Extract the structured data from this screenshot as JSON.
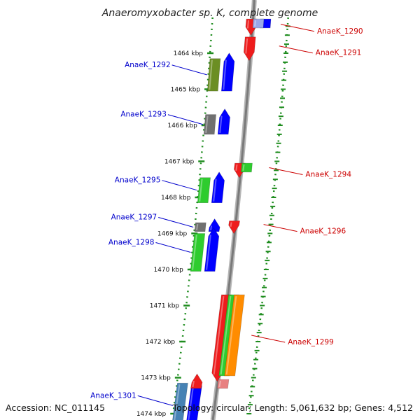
{
  "map": {
    "title": "Anaeromyxobacter sp. K, complete genome",
    "accession": "Accession: NC_011145",
    "summary": "Topology: circular; Length: 5,061,632 bp; Genes: 4,512",
    "axis_unit": "kbp"
  },
  "ticks": [
    {
      "kbp": 1464,
      "label": "1464 kbp"
    },
    {
      "kbp": 1465,
      "label": "1465 kbp"
    },
    {
      "kbp": 1466,
      "label": "1466 kbp"
    },
    {
      "kbp": 1467,
      "label": "1467 kbp"
    },
    {
      "kbp": 1468,
      "label": "1468 kbp"
    },
    {
      "kbp": 1469,
      "label": "1469 kbp"
    },
    {
      "kbp": 1470,
      "label": "1470 kbp"
    },
    {
      "kbp": 1471,
      "label": "1471 kbp"
    },
    {
      "kbp": 1472,
      "label": "1472 kbp"
    },
    {
      "kbp": 1473,
      "label": "1473 kbp"
    },
    {
      "kbp": 1474,
      "label": "1474 kbp"
    }
  ],
  "genes_left": [
    {
      "label": "AnaeK_1292",
      "start": 1464.15,
      "end": 1465.05,
      "color": "#6b8e23"
    },
    {
      "label": "AnaeK_1293",
      "start": 1465.7,
      "end": 1466.25,
      "color": "#707070"
    },
    {
      "label": "AnaeK_1295",
      "start": 1467.45,
      "end": 1468.15,
      "color": "#2ecc2e"
    },
    {
      "label": "AnaeK_1297",
      "start": 1468.7,
      "end": 1468.95,
      "color": "#707070"
    },
    {
      "label": "AnaeK_1298",
      "start": 1469.0,
      "end": 1470.05,
      "color": "#2ecc2e"
    },
    {
      "label": "AnaeK_1301",
      "start": 1473.15,
      "end": 1474.4,
      "color": "#4682b4"
    }
  ],
  "genes_right": [
    {
      "label": "AnaeK_1290",
      "start": 1463.05,
      "end": 1463.35,
      "color": "#ee1c1c"
    },
    {
      "label": "AnaeK_1291",
      "start": 1463.55,
      "end": 1464.05,
      "color": "#ee1c1c"
    },
    {
      "label": "AnaeK_1294",
      "start": 1467.05,
      "end": 1467.3,
      "color": "#ee1c1c"
    },
    {
      "label": "AnaeK_1296",
      "start": 1468.65,
      "end": 1468.85,
      "color": "#ee1c1c"
    },
    {
      "label": "AnaeK_1299",
      "start": 1470.7,
      "end": 1472.95,
      "color": "#ee1c1c"
    }
  ],
  "unlabeled": [
    {
      "track": "fwd-cds",
      "start": 1463.05,
      "end": 1463.3,
      "color": "#0000ff"
    },
    {
      "track": "fwd-gene",
      "start": 1463.05,
      "end": 1463.3,
      "color": "#9aa8e8"
    },
    {
      "track": "fwd-gene",
      "start": 1467.05,
      "end": 1467.3,
      "color": "#2ecc2e"
    },
    {
      "track": "rev-cds",
      "start": 1464.15,
      "end": 1465.05,
      "color": "#0000ff"
    },
    {
      "track": "rev-cds",
      "start": 1465.7,
      "end": 1466.25,
      "color": "#0000ff"
    },
    {
      "track": "rev-cds",
      "start": 1467.45,
      "end": 1468.15,
      "color": "#0000ff"
    },
    {
      "track": "rev-cds",
      "start": 1468.75,
      "end": 1468.95,
      "color": "#0000ff"
    },
    {
      "track": "rev-cds",
      "start": 1469.0,
      "end": 1470.05,
      "color": "#0000ff"
    },
    {
      "track": "rev-cds",
      "start": 1473.15,
      "end": 1474.4,
      "color": "#0000ff"
    },
    {
      "track": "fwd-gene",
      "start": 1470.7,
      "end": 1472.95,
      "color": "#2ecc2e"
    },
    {
      "track": "fwd-cds2",
      "start": 1470.7,
      "end": 1472.95,
      "color": "#ff8c00"
    },
    {
      "track": "rev-cds",
      "start": 1473.05,
      "end": 1473.3,
      "color": "#ee1c1c"
    },
    {
      "track": "fwd-gene",
      "start": 1473.05,
      "end": 1473.3,
      "color": "#e88080"
    }
  ]
}
